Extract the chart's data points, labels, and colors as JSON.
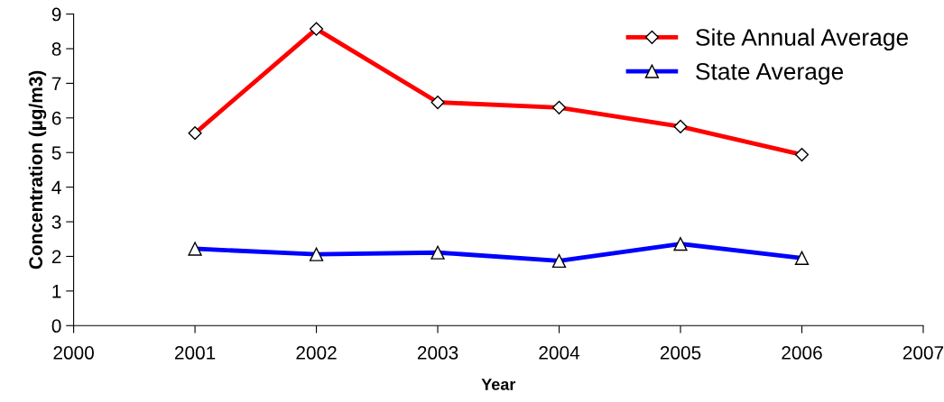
{
  "chart_data": {
    "type": "line",
    "xlabel": "Year",
    "ylabel": "Concentration (µg/m3)",
    "x": [
      2001,
      2002,
      2003,
      2004,
      2005,
      2006
    ],
    "series": [
      {
        "name": "Site Annual Average",
        "color": "#ff0000",
        "marker": "diamond",
        "values": [
          5.56,
          8.57,
          6.45,
          6.3,
          5.75,
          4.94
        ]
      },
      {
        "name": "State Average",
        "color": "#0000ff",
        "marker": "triangle",
        "values": [
          2.22,
          2.06,
          2.11,
          1.87,
          2.36,
          1.95
        ]
      }
    ],
    "xlim": [
      2000,
      2007
    ],
    "xticks": [
      2000,
      2001,
      2002,
      2003,
      2004,
      2005,
      2006,
      2007
    ],
    "ylim": [
      0,
      9
    ],
    "yticks": [
      0,
      1,
      2,
      3,
      4,
      5,
      6,
      7,
      8,
      9
    ],
    "grid": false,
    "legend": "top right",
    "line_style": "solid"
  }
}
